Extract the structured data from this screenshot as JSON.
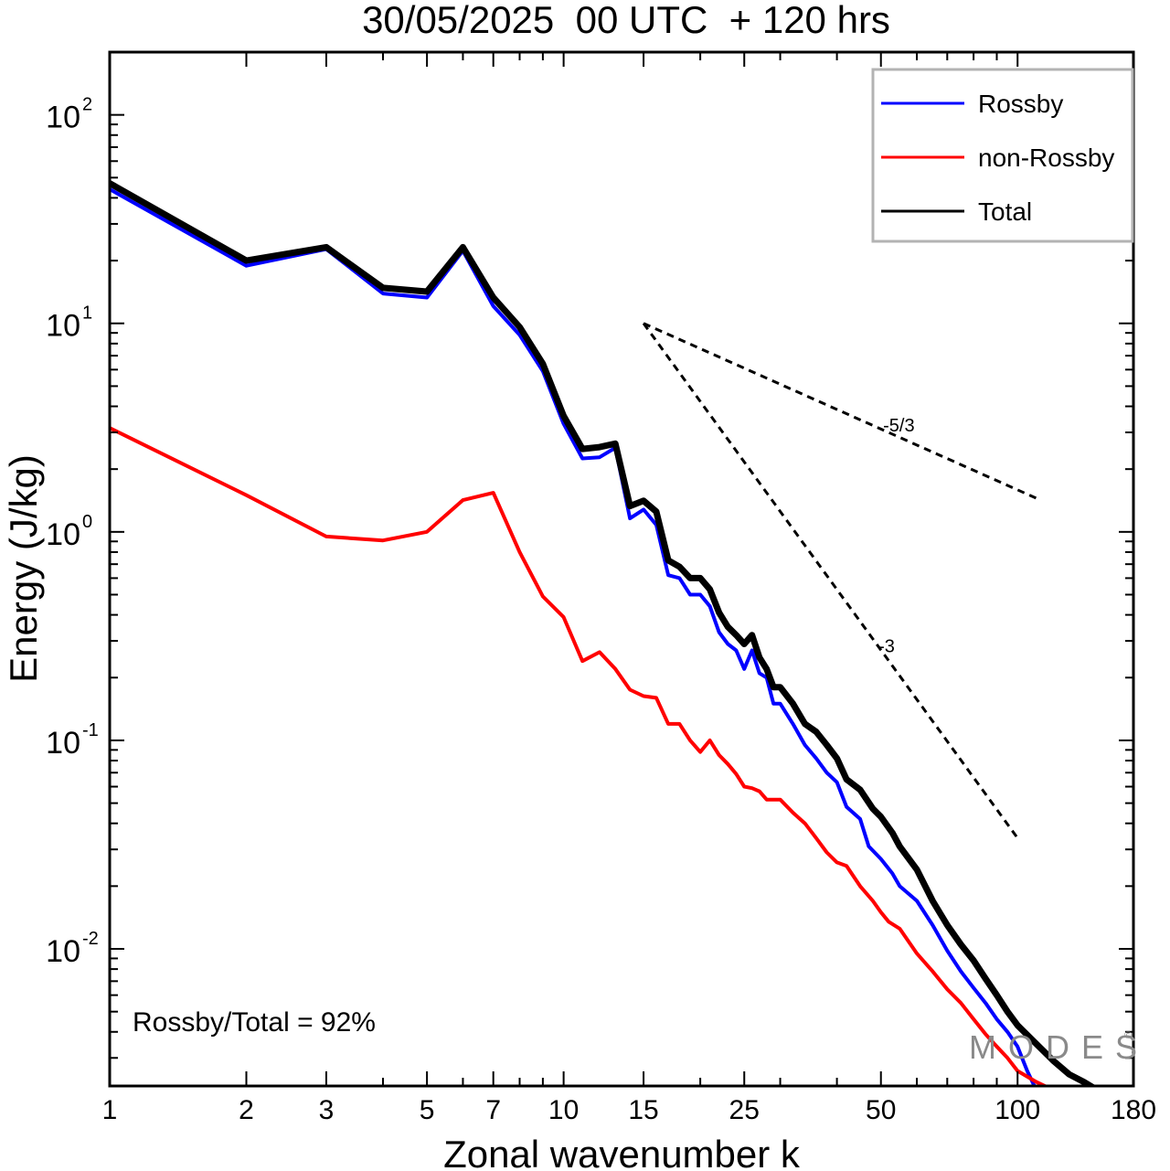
{
  "chart_data": {
    "type": "line",
    "title": "30/05/2025  00 UTC  + 120 hrs",
    "xlabel": "Zonal wavenumber k",
    "ylabel": "Energy (J/kg)",
    "xscale": "log",
    "yscale": "log",
    "xlim": [
      1,
      180
    ],
    "ylim": [
      0.0022,
      200
    ],
    "x_ticks": [
      {
        "value": 1,
        "label": "1"
      },
      {
        "value": 2,
        "label": "2"
      },
      {
        "value": 3,
        "label": "3"
      },
      {
        "value": 5,
        "label": "5"
      },
      {
        "value": 7,
        "label": "7"
      },
      {
        "value": 10,
        "label": "10"
      },
      {
        "value": 15,
        "label": "15"
      },
      {
        "value": 25,
        "label": "25"
      },
      {
        "value": 50,
        "label": "50"
      },
      {
        "value": 100,
        "label": "100"
      },
      {
        "value": 180,
        "label": "180"
      }
    ],
    "y_ticks": [
      {
        "value": 100,
        "base": "10",
        "exp": "2"
      },
      {
        "value": 10,
        "base": "10",
        "exp": "1"
      },
      {
        "value": 1,
        "base": "10",
        "exp": "0"
      },
      {
        "value": 0.1,
        "base": "10",
        "exp": "-1"
      },
      {
        "value": 0.01,
        "base": "10",
        "exp": "-2"
      }
    ],
    "grid": false,
    "legend_position": "top-right",
    "series": [
      {
        "name": "Rossby",
        "color": "#0000ff",
        "stroke_width": 4,
        "points": [
          [
            1,
            44
          ],
          [
            2,
            18.9
          ],
          [
            3,
            22.7
          ],
          [
            4,
            13.9
          ],
          [
            5,
            13.3
          ],
          [
            6,
            22.3
          ],
          [
            7,
            12.1
          ],
          [
            8,
            8.8
          ],
          [
            9,
            5.9
          ],
          [
            10,
            3.3
          ],
          [
            11,
            2.25
          ],
          [
            12,
            2.28
          ],
          [
            13,
            2.53
          ],
          [
            14,
            1.16
          ],
          [
            15,
            1.28
          ],
          [
            16,
            1.08
          ],
          [
            17,
            0.62
          ],
          [
            18,
            0.6
          ],
          [
            19,
            0.5
          ],
          [
            20,
            0.5
          ],
          [
            21,
            0.44
          ],
          [
            22,
            0.33
          ],
          [
            23,
            0.29
          ],
          [
            24,
            0.27
          ],
          [
            25,
            0.22
          ],
          [
            26,
            0.27
          ],
          [
            27,
            0.21
          ],
          [
            28,
            0.2
          ],
          [
            29,
            0.15
          ],
          [
            30,
            0.15
          ],
          [
            32,
            0.12
          ],
          [
            34,
            0.095
          ],
          [
            36,
            0.082
          ],
          [
            38,
            0.07
          ],
          [
            40,
            0.063
          ],
          [
            42,
            0.048
          ],
          [
            45,
            0.042
          ],
          [
            47,
            0.031
          ],
          [
            50,
            0.027
          ],
          [
            53,
            0.023
          ],
          [
            55,
            0.02
          ],
          [
            60,
            0.017
          ],
          [
            65,
            0.013
          ],
          [
            70,
            0.0098
          ],
          [
            75,
            0.0078
          ],
          [
            80,
            0.0065
          ],
          [
            85,
            0.0055
          ],
          [
            90,
            0.0046
          ],
          [
            95,
            0.004
          ],
          [
            100,
            0.0034
          ],
          [
            105,
            0.0026
          ],
          [
            110,
            0.0021
          ]
        ]
      },
      {
        "name": "non-Rossby",
        "color": "#ff0000",
        "stroke_width": 4,
        "points": [
          [
            1,
            3.15
          ],
          [
            2,
            1.5
          ],
          [
            3,
            0.95
          ],
          [
            4,
            0.91
          ],
          [
            5,
            1.0
          ],
          [
            6,
            1.42
          ],
          [
            7,
            1.54
          ],
          [
            8,
            0.8
          ],
          [
            9,
            0.49
          ],
          [
            10,
            0.39
          ],
          [
            11,
            0.24
          ],
          [
            12,
            0.265
          ],
          [
            13,
            0.22
          ],
          [
            14,
            0.175
          ],
          [
            15,
            0.163
          ],
          [
            16,
            0.16
          ],
          [
            17,
            0.12
          ],
          [
            18,
            0.12
          ],
          [
            19,
            0.1
          ],
          [
            20,
            0.088
          ],
          [
            21,
            0.1
          ],
          [
            22,
            0.085
          ],
          [
            23,
            0.077
          ],
          [
            24,
            0.069
          ],
          [
            25,
            0.06
          ],
          [
            26,
            0.059
          ],
          [
            27,
            0.057
          ],
          [
            28,
            0.052
          ],
          [
            30,
            0.052
          ],
          [
            32,
            0.045
          ],
          [
            34,
            0.04
          ],
          [
            36,
            0.034
          ],
          [
            38,
            0.029
          ],
          [
            40,
            0.026
          ],
          [
            42,
            0.025
          ],
          [
            45,
            0.02
          ],
          [
            48,
            0.017
          ],
          [
            50,
            0.015
          ],
          [
            52,
            0.0135
          ],
          [
            55,
            0.0125
          ],
          [
            60,
            0.0095
          ],
          [
            65,
            0.0078
          ],
          [
            70,
            0.0064
          ],
          [
            75,
            0.0055
          ],
          [
            80,
            0.0046
          ],
          [
            85,
            0.0039
          ],
          [
            90,
            0.0034
          ],
          [
            95,
            0.003
          ],
          [
            100,
            0.0026
          ],
          [
            110,
            0.0023
          ],
          [
            120,
            0.0021
          ]
        ]
      },
      {
        "name": "Total",
        "color": "#000000",
        "stroke_width": 7,
        "points": [
          [
            1,
            47
          ],
          [
            2,
            20
          ],
          [
            3,
            23.2
          ],
          [
            4,
            14.8
          ],
          [
            5,
            14.2
          ],
          [
            6,
            23.2
          ],
          [
            7,
            13.3
          ],
          [
            8,
            9.6
          ],
          [
            9,
            6.4
          ],
          [
            10,
            3.6
          ],
          [
            11,
            2.5
          ],
          [
            12,
            2.55
          ],
          [
            13,
            2.65
          ],
          [
            14,
            1.33
          ],
          [
            15,
            1.41
          ],
          [
            16,
            1.25
          ],
          [
            17,
            0.73
          ],
          [
            18,
            0.68
          ],
          [
            19,
            0.6
          ],
          [
            20,
            0.6
          ],
          [
            21,
            0.53
          ],
          [
            22,
            0.41
          ],
          [
            23,
            0.35
          ],
          [
            24,
            0.32
          ],
          [
            25,
            0.29
          ],
          [
            26,
            0.32
          ],
          [
            27,
            0.25
          ],
          [
            28,
            0.22
          ],
          [
            29,
            0.18
          ],
          [
            30,
            0.18
          ],
          [
            32,
            0.15
          ],
          [
            34,
            0.12
          ],
          [
            36,
            0.11
          ],
          [
            38,
            0.095
          ],
          [
            40,
            0.082
          ],
          [
            42,
            0.065
          ],
          [
            45,
            0.058
          ],
          [
            48,
            0.047
          ],
          [
            50,
            0.043
          ],
          [
            53,
            0.036
          ],
          [
            55,
            0.031
          ],
          [
            60,
            0.024
          ],
          [
            65,
            0.017
          ],
          [
            70,
            0.013
          ],
          [
            75,
            0.0105
          ],
          [
            80,
            0.0088
          ],
          [
            85,
            0.0072
          ],
          [
            90,
            0.006
          ],
          [
            95,
            0.005
          ],
          [
            100,
            0.0043
          ],
          [
            110,
            0.0035
          ],
          [
            120,
            0.0029
          ],
          [
            130,
            0.0025
          ],
          [
            140,
            0.0023
          ],
          [
            150,
            0.0021
          ]
        ]
      }
    ],
    "reference_lines": [
      {
        "slope_label": "-5/3",
        "x": [
          15,
          110
        ],
        "y": [
          10,
          1.45
        ]
      },
      {
        "slope_label": "-3",
        "x": [
          15,
          100
        ],
        "y": [
          10,
          0.034
        ]
      }
    ],
    "annotation": "Rossby/Total = 92%",
    "watermark": "MODES",
    "watermark_mark": "©"
  }
}
